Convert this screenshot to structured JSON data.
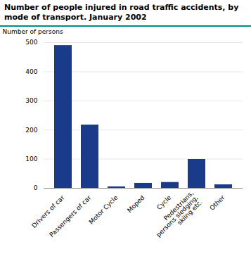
{
  "chart_data": {
    "type": "bar",
    "title": "Number of people injured in road traffic accidents, by\nmode of transport. January 2002",
    "y_label": "Number of persons",
    "categories": [
      "Drivers of car",
      "Passengers of car",
      "Motor Cycle",
      "Moped",
      "Cycle",
      "Pedestrians,\npersons sledging,\nskiing etc.",
      "Other"
    ],
    "values": [
      490,
      217,
      5,
      17,
      20,
      99,
      12
    ],
    "color": "#1a3a8a",
    "ylim": [
      0,
      500
    ],
    "yticks": [
      0,
      100,
      200,
      300,
      400,
      500
    ],
    "grid": true
  }
}
